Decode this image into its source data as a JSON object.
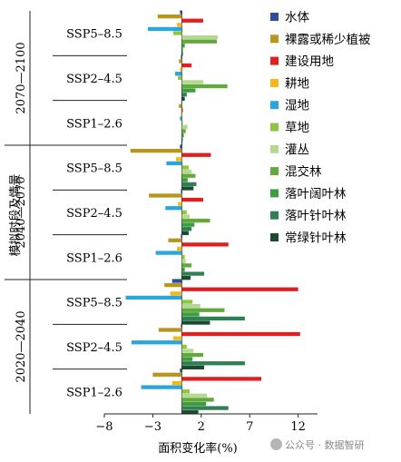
{
  "chart_data": {
    "type": "bar",
    "orientation": "horizontal",
    "xlabel": "面积变化率(%)",
    "ylabel": "模拟时段及情景",
    "xlim": [
      -8,
      14
    ],
    "xticks": [
      -8,
      -3,
      2,
      7,
      12
    ],
    "periods": [
      {
        "label": "2070—2100",
        "scenarios": [
          "SSP5–8.5",
          "SSP2–4.5",
          "SSP1–2.6"
        ]
      },
      {
        "label": "2040—2070",
        "scenarios": [
          "SSP5–8.5",
          "SSP2–4.5",
          "SSP1–2.6"
        ]
      },
      {
        "label": "2020—2040",
        "scenarios": [
          "SSP5–8.5",
          "SSP2–4.5",
          "SSP1–2.6"
        ]
      }
    ],
    "series": [
      {
        "name": "水体",
        "color": "#2e4d9e",
        "values": [
          -0.2,
          -0.1,
          -0.05,
          -0.2,
          -0.1,
          -0.1,
          -1.0,
          -0.1,
          -0.2
        ]
      },
      {
        "name": "裸露或稀少植被",
        "color": "#b8961e",
        "values": [
          -2.5,
          -0.3,
          -0.3,
          -5.3,
          -3.4,
          -1.4,
          -1.8,
          -2.4,
          -3.0
        ]
      },
      {
        "name": "建设用地",
        "color": "#e02020",
        "values": [
          2.2,
          1.0,
          0.1,
          3.0,
          2.2,
          4.8,
          12.0,
          12.2,
          8.2
        ]
      },
      {
        "name": "耕地",
        "color": "#f5b71a",
        "values": [
          -0.5,
          -0.2,
          -0.1,
          -0.6,
          -0.4,
          -0.5,
          -1.2,
          -0.9,
          -1.0
        ]
      },
      {
        "name": "湿地",
        "color": "#2aa6dc",
        "values": [
          -3.5,
          -0.7,
          -0.2,
          -1.6,
          -1.7,
          -2.7,
          -5.8,
          -5.2,
          -4.2
        ]
      },
      {
        "name": "草地",
        "color": "#8cc63f",
        "values": [
          -0.9,
          -0.4,
          0.1,
          0.7,
          0.5,
          0.3,
          1.1,
          0.5,
          0.8
        ]
      },
      {
        "name": "灌丛",
        "color": "#b3d88f",
        "values": [
          3.7,
          2.2,
          0.6,
          1.0,
          0.8,
          0.4,
          1.9,
          1.2,
          2.6
        ]
      },
      {
        "name": "混交林",
        "color": "#62a83c",
        "values": [
          3.6,
          4.7,
          0.4,
          1.4,
          2.9,
          1.0,
          4.4,
          2.2,
          3.3
        ]
      },
      {
        "name": "落叶阔叶林",
        "color": "#3c9e3f",
        "values": [
          0.3,
          1.4,
          0.2,
          0.6,
          1.3,
          0.3,
          1.8,
          1.1,
          2.5
        ]
      },
      {
        "name": "落叶针叶林",
        "color": "#2e8052",
        "values": [
          0.1,
          0.5,
          0.1,
          1.5,
          1.0,
          2.3,
          6.5,
          6.5,
          4.8
        ]
      },
      {
        "name": "常绿针叶林",
        "color": "#1c4a2f",
        "values": [
          0.1,
          0.3,
          0.05,
          1.2,
          0.7,
          0.9,
          2.9,
          2.3,
          1.7
        ]
      }
    ]
  },
  "watermark": {
    "text": "公众号 · 数据智研"
  }
}
